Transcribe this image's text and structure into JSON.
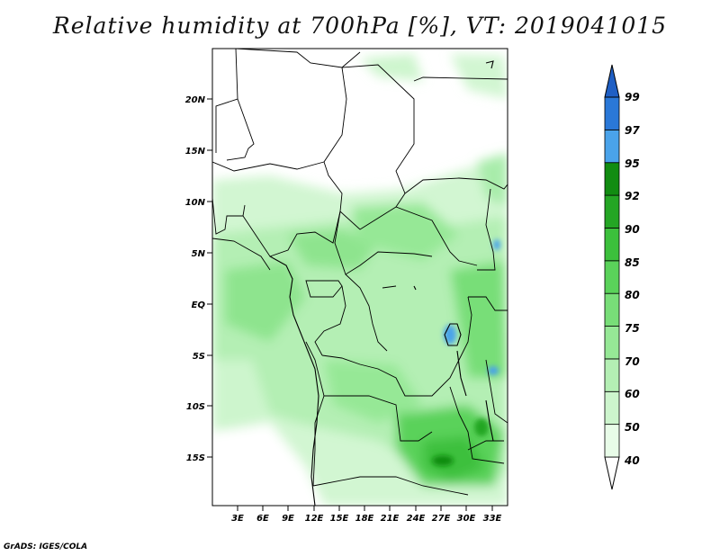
{
  "title": "Relative humidity at 700hPa [%], VT: 2019041015",
  "credit": "GrADS: IGES/COLA",
  "map": {
    "lat_labels": [
      "20N",
      "15N",
      "10N",
      "5N",
      "EQ",
      "5S",
      "10S",
      "15S"
    ],
    "lon_labels": [
      "3E",
      "6E",
      "9E",
      "12E",
      "15E",
      "18E",
      "21E",
      "24E",
      "27E",
      "30E",
      "33E"
    ]
  },
  "colorbar": {
    "levels": [
      "40",
      "50",
      "60",
      "70",
      "75",
      "80",
      "85",
      "90",
      "92",
      "95",
      "97",
      "99"
    ],
    "colors": [
      "#ffffff",
      "#e8fce8",
      "#cdf5cd",
      "#b4efb4",
      "#96e896",
      "#78de78",
      "#5ad25a",
      "#3cc03c",
      "#24a624",
      "#118c11",
      "#4aa3ea",
      "#2a78d8",
      "#1f5fc4"
    ]
  }
}
